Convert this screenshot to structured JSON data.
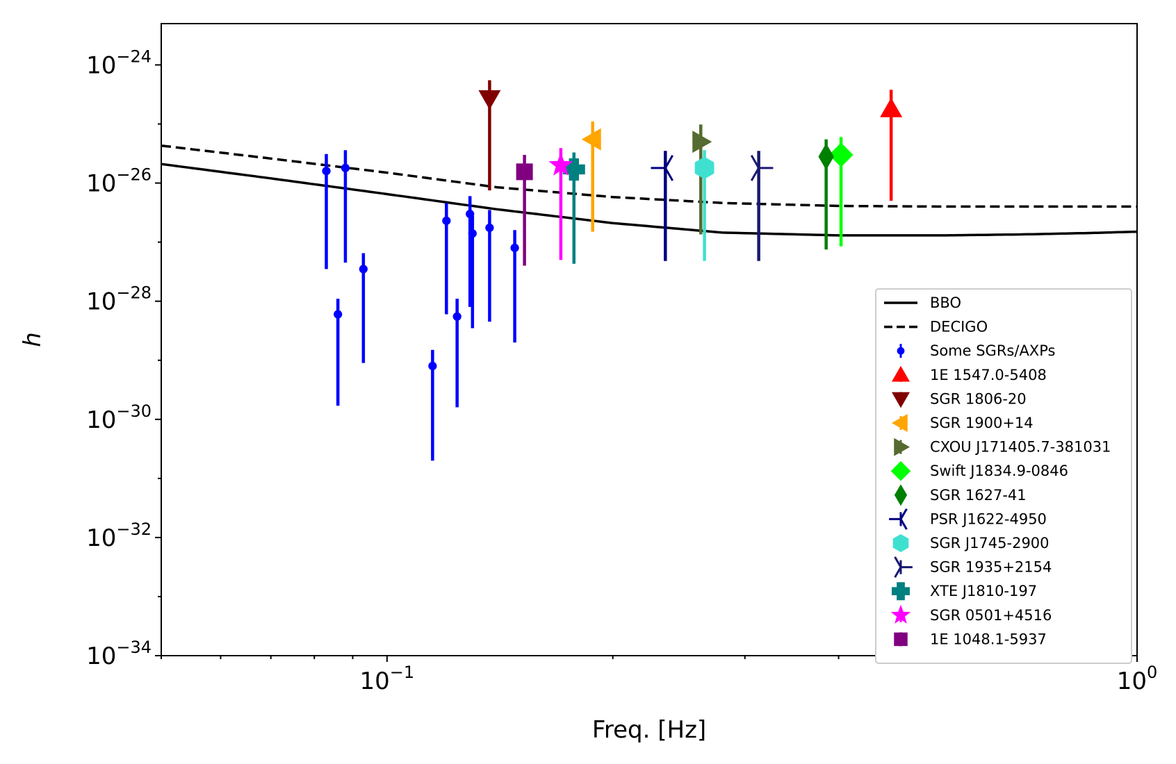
{
  "chart_data": {
    "type": "scatter",
    "xscale": "log",
    "yscale": "log",
    "xlim": [
      0.05,
      1.0
    ],
    "ylim": [
      1e-34,
      5e-24
    ],
    "xlabel": "Freq. [Hz]",
    "ylabel": "h",
    "x_ticks": [
      {
        "value": 0.1,
        "base": "10",
        "exp": "−1"
      },
      {
        "value": 1.0,
        "base": "10",
        "exp": "0"
      }
    ],
    "y_ticks": [
      {
        "value": 1e-24,
        "base": "10",
        "exp": "−24"
      },
      {
        "value": 1e-26,
        "base": "10",
        "exp": "−26"
      },
      {
        "value": 1e-28,
        "base": "10",
        "exp": "−28"
      },
      {
        "value": 1e-30,
        "base": "10",
        "exp": "−30"
      },
      {
        "value": 1e-32,
        "base": "10",
        "exp": "−32"
      },
      {
        "value": 1e-34,
        "base": "10",
        "exp": "−34"
      }
    ],
    "curves": [
      {
        "name": "BBO",
        "style": "solid",
        "color": "#000000",
        "x": [
          0.05,
          0.07,
          0.1,
          0.14,
          0.2,
          0.28,
          0.4,
          0.55,
          0.7,
          0.85,
          1.0
        ],
        "y": [
          2.1e-26,
          1.2e-26,
          6.5e-27,
          3.6e-27,
          2.1e-27,
          1.45e-27,
          1.3e-27,
          1.3e-27,
          1.35e-27,
          1.42e-27,
          1.5e-27
        ]
      },
      {
        "name": "DECIGO",
        "style": "dashed",
        "color": "#000000",
        "x": [
          0.05,
          0.07,
          0.1,
          0.14,
          0.2,
          0.28,
          0.4,
          0.55,
          0.7,
          1.0
        ],
        "y": [
          4.3e-26,
          2.6e-26,
          1.5e-26,
          8.5e-27,
          5.8e-27,
          4.6e-27,
          4.1e-27,
          4e-27,
          4e-27,
          4e-27
        ]
      }
    ],
    "series": [
      {
        "name": "Some SGRs/AXPs",
        "marker": "dot",
        "color": "#0000ff",
        "points": [
          {
            "x": 0.083,
            "y": 1.6e-26,
            "ylo": 3.5e-28,
            "yhi": 3.1e-26
          },
          {
            "x": 0.086,
            "y": 6e-29,
            "ylo": 1.7e-30,
            "yhi": 1.1e-28
          },
          {
            "x": 0.088,
            "y": 1.8e-26,
            "ylo": 4.5e-28,
            "yhi": 3.6e-26
          },
          {
            "x": 0.093,
            "y": 3.5e-28,
            "ylo": 9e-30,
            "yhi": 6.5e-28
          },
          {
            "x": 0.115,
            "y": 8e-30,
            "ylo": 2e-31,
            "yhi": 1.5e-29
          },
          {
            "x": 0.12,
            "y": 2.3e-27,
            "ylo": 6e-29,
            "yhi": 4.6e-27
          },
          {
            "x": 0.124,
            "y": 5.5e-29,
            "ylo": 1.6e-30,
            "yhi": 1.1e-28
          },
          {
            "x": 0.129,
            "y": 3e-27,
            "ylo": 8e-29,
            "yhi": 6e-27
          },
          {
            "x": 0.13,
            "y": 1.4e-27,
            "ylo": 3.5e-29,
            "yhi": 2.8e-27
          },
          {
            "x": 0.137,
            "y": 1.75e-27,
            "ylo": 4.5e-29,
            "yhi": 3.5e-27
          },
          {
            "x": 0.148,
            "y": 8e-28,
            "ylo": 2e-29,
            "yhi": 1.6e-27
          }
        ]
      },
      {
        "name": "1E 1547.0-5408",
        "marker": "triangle-up",
        "color": "#ff0000",
        "points": [
          {
            "x": 0.47,
            "y": 1.8e-25,
            "ylo": 5e-27,
            "yhi": 3.8e-25
          }
        ]
      },
      {
        "name": "SGR 1806-20",
        "marker": "triangle-down",
        "color": "#800000",
        "points": [
          {
            "x": 0.137,
            "y": 2.7e-25,
            "ylo": 7.5e-27,
            "yhi": 5.5e-25
          }
        ]
      },
      {
        "name": "SGR 1900+14",
        "marker": "triangle-left",
        "color": "#ffa500",
        "points": [
          {
            "x": 0.188,
            "y": 5.5e-26,
            "ylo": 1.5e-27,
            "yhi": 1.1e-25
          }
        ]
      },
      {
        "name": "CXOU J171405.7-381031",
        "marker": "triangle-right",
        "color": "#556b2f",
        "points": [
          {
            "x": 0.262,
            "y": 5e-26,
            "ylo": 1.35e-27,
            "yhi": 9.8e-26
          }
        ]
      },
      {
        "name": "Swift J1834.9-0846",
        "marker": "diamond",
        "color": "#00ff00",
        "points": [
          {
            "x": 0.403,
            "y": 3e-26,
            "ylo": 8.5e-28,
            "yhi": 6e-26
          }
        ]
      },
      {
        "name": "SGR 1627-41",
        "marker": "thin-diamond",
        "color": "#008000",
        "points": [
          {
            "x": 0.385,
            "y": 2.8e-26,
            "ylo": 7.5e-28,
            "yhi": 5.5e-26
          }
        ]
      },
      {
        "name": "PSR J1622-4950",
        "marker": "tri-left",
        "color": "#000080",
        "points": [
          {
            "x": 0.235,
            "y": 1.8e-26,
            "ylo": 4.8e-28,
            "yhi": 3.5e-26
          }
        ]
      },
      {
        "name": "SGR J1745-2900",
        "marker": "hexagon",
        "color": "#40e0d0",
        "points": [
          {
            "x": 0.265,
            "y": 1.8e-26,
            "ylo": 4.8e-28,
            "yhi": 3.6e-26
          }
        ]
      },
      {
        "name": "SGR 1935+2154",
        "marker": "tri-right",
        "color": "#191970",
        "points": [
          {
            "x": 0.313,
            "y": 1.8e-26,
            "ylo": 4.8e-28,
            "yhi": 3.5e-26
          }
        ]
      },
      {
        "name": "XTE J1810-197",
        "marker": "plus-filled",
        "color": "#008080",
        "points": [
          {
            "x": 0.1775,
            "y": 1.7e-26,
            "ylo": 4.3e-28,
            "yhi": 3.3e-26
          }
        ]
      },
      {
        "name": "SGR 0501+4516",
        "marker": "star",
        "color": "#ff00ff",
        "points": [
          {
            "x": 0.1705,
            "y": 2e-26,
            "ylo": 5e-28,
            "yhi": 3.9e-26
          }
        ]
      },
      {
        "name": "1E 1048.1-5937",
        "marker": "square",
        "color": "#800080",
        "points": [
          {
            "x": 0.1525,
            "y": 1.55e-26,
            "ylo": 4e-28,
            "yhi": 3e-26
          }
        ]
      }
    ],
    "legend": {
      "location": "lower-right",
      "entries": [
        {
          "label": "BBO",
          "kind": "line-solid",
          "color": "#000000"
        },
        {
          "label": "DECIGO",
          "kind": "line-dashed",
          "color": "#000000"
        },
        {
          "label": "Some SGRs/AXPs",
          "kind": "dot",
          "color": "#0000ff"
        },
        {
          "label": "1E 1547.0-5408",
          "kind": "triangle-up",
          "color": "#ff0000"
        },
        {
          "label": "SGR 1806-20",
          "kind": "triangle-down",
          "color": "#800000"
        },
        {
          "label": "SGR 1900+14",
          "kind": "triangle-left",
          "color": "#ffa500"
        },
        {
          "label": "CXOU J171405.7-381031",
          "kind": "triangle-right",
          "color": "#556b2f"
        },
        {
          "label": "Swift J1834.9-0846",
          "kind": "diamond",
          "color": "#00ff00"
        },
        {
          "label": "SGR 1627-41",
          "kind": "thin-diamond",
          "color": "#008000"
        },
        {
          "label": "PSR J1622-4950",
          "kind": "tri-left",
          "color": "#000080"
        },
        {
          "label": "SGR J1745-2900",
          "kind": "hexagon",
          "color": "#40e0d0"
        },
        {
          "label": "SGR 1935+2154",
          "kind": "tri-right",
          "color": "#191970"
        },
        {
          "label": "XTE J1810-197",
          "kind": "plus-filled",
          "color": "#008080"
        },
        {
          "label": "SGR 0501+4516",
          "kind": "star",
          "color": "#ff00ff"
        },
        {
          "label": "1E 1048.1-5937",
          "kind": "square",
          "color": "#800080"
        }
      ]
    }
  }
}
